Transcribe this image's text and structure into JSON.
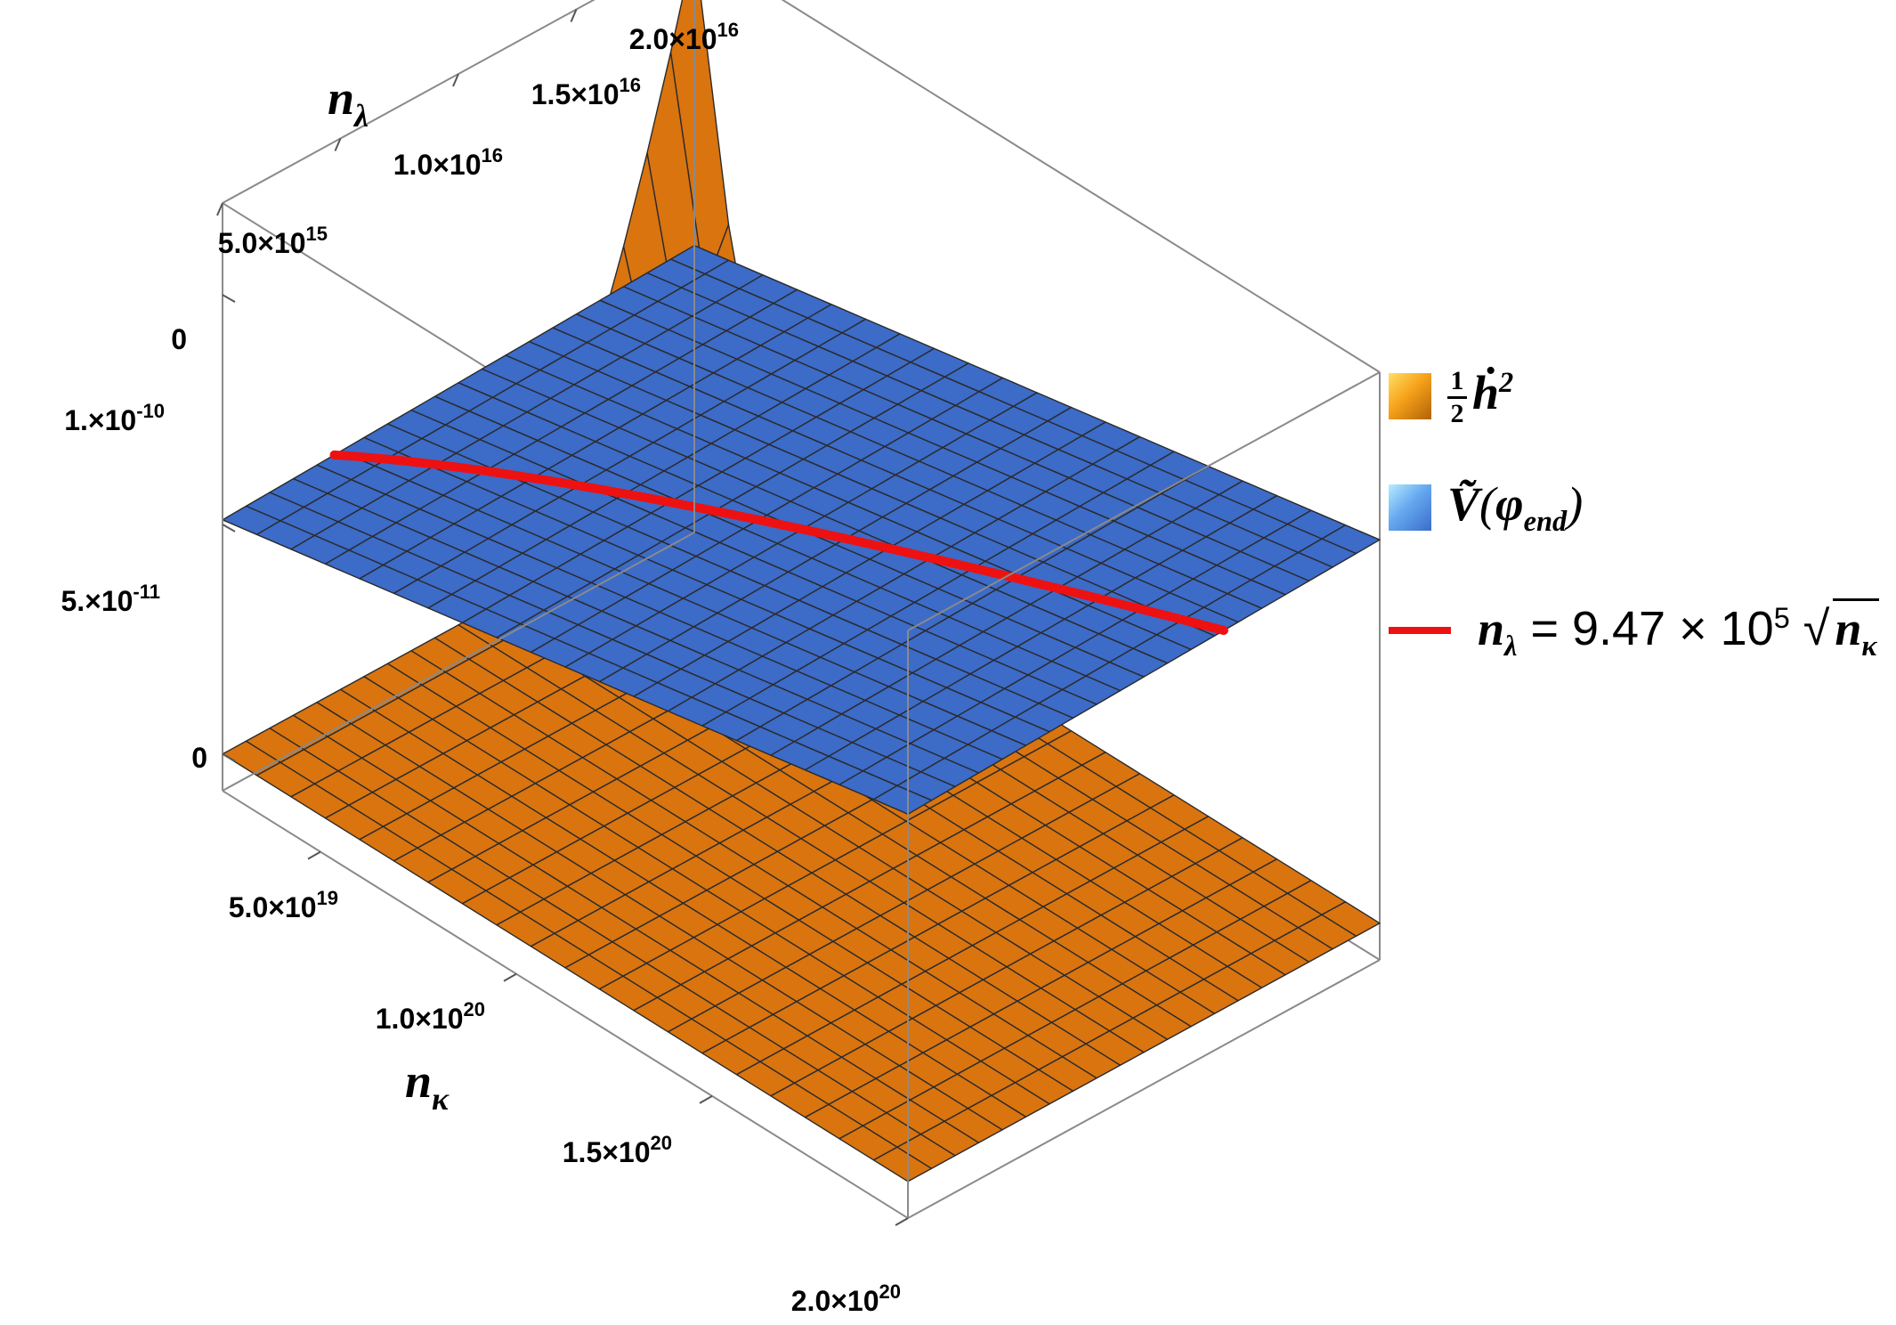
{
  "chart_data": {
    "type": "surface3d",
    "axes": {
      "x": {
        "name": "n_κ",
        "ticks": [
          "5.0×10",
          "1.0×10",
          "1.5×10",
          "2.0×10"
        ],
        "tick_exp": [
          "19",
          "20",
          "20",
          "20"
        ],
        "tick_values": [
          5e+19,
          1e+20,
          1.5e+20,
          2e+20
        ]
      },
      "y": {
        "name": "n_λ",
        "ticks": [
          "0",
          "5.0×10",
          "1.0×10",
          "1.5×10",
          "2.0×10"
        ],
        "tick_exp": [
          "",
          "15",
          "16",
          "16",
          "16"
        ],
        "tick_values": [
          0,
          5000000000000000.0,
          1e+16,
          1.5e+16,
          2e+16
        ]
      },
      "z": {
        "ticks": [
          "0",
          "5.×10",
          "1.×10"
        ],
        "tick_exp": [
          "",
          "-11",
          "-10"
        ],
        "tick_values": [
          0,
          5e-11,
          1e-10
        ]
      }
    },
    "series": [
      {
        "name": "½ ḣ²",
        "kind": "surface",
        "color": "#d9740f",
        "description_values": {
          "flat_level": 0,
          "peak_value": 1.2e-10
        }
      },
      {
        "name": "Ṽ(φ_end)",
        "kind": "surface",
        "color": "#3c6bc8",
        "description_values": {
          "z_at_min_nk": 5.1e-11,
          "z_at_max_nk": 8e-11
        }
      },
      {
        "name": "n_λ = 9.47 × 10^5 √n_κ",
        "kind": "curve",
        "color": "#ee1111",
        "coefficient": 947000.0
      }
    ]
  },
  "axis_labels": {
    "x_name": "n",
    "x_sub": "κ",
    "y_name": "n",
    "y_sub": "λ"
  },
  "legend": {
    "orange_num": "1",
    "orange_den": "2",
    "orange_sym": "ḣ",
    "orange_sup": "2",
    "blue_sym": "Ṽ",
    "blue_open": "(",
    "blue_phi": "φ",
    "blue_sub": "end",
    "blue_close": ")",
    "curve_lhs": "n",
    "curve_lhs_sub": "λ",
    "curve_eq": " = 9.47 × 10",
    "curve_exp": "5",
    "curve_sqrt": "√",
    "curve_rad": "n",
    "curve_rad_sub": "κ"
  }
}
